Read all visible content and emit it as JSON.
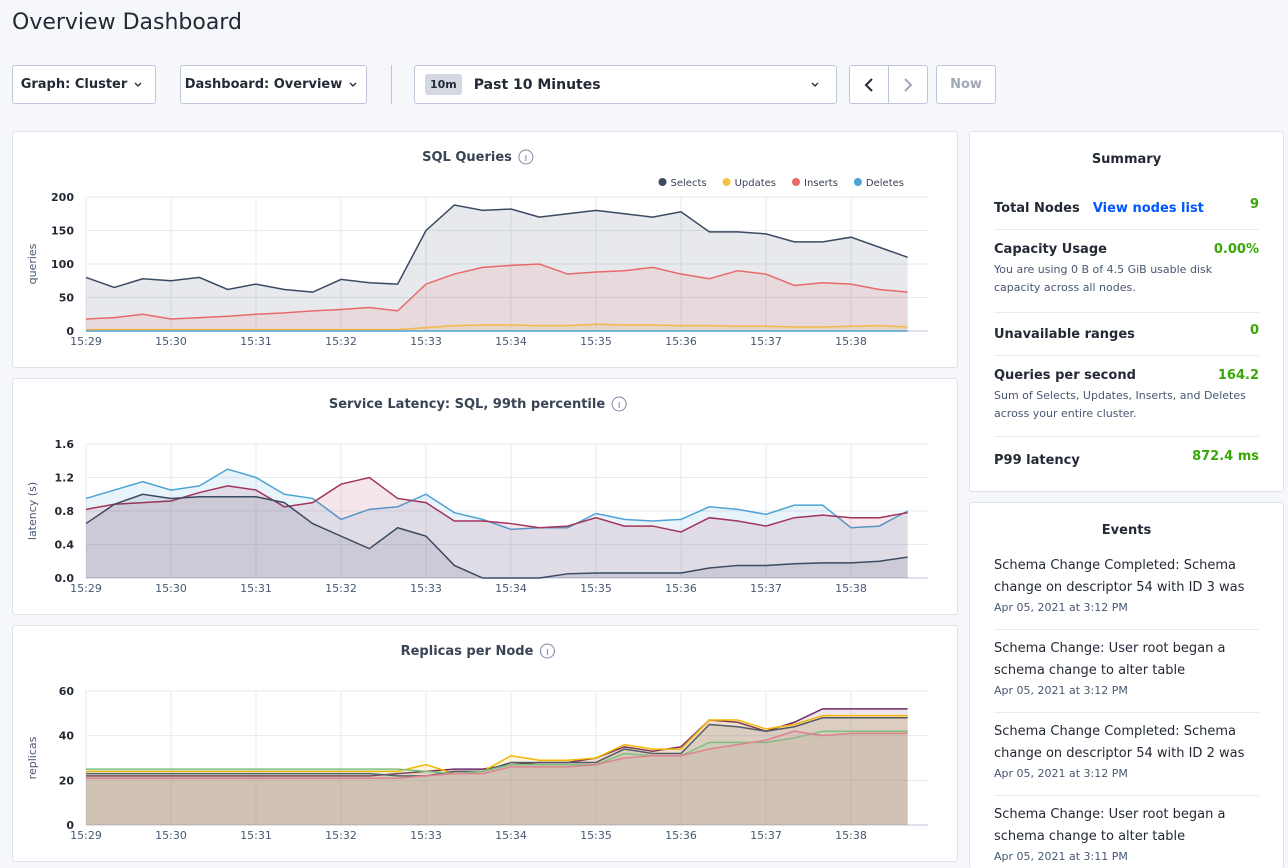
{
  "header": {
    "title": "Overview Dashboard"
  },
  "controls": {
    "graph": "Graph: Cluster",
    "dashboard": "Dashboard: Overview",
    "range_badge": "10m",
    "range": "Past 10 Minutes",
    "now": "Now"
  },
  "chart_data": [
    {
      "type": "line",
      "title": "SQL Queries",
      "y_label": "queries",
      "categories": [
        "15:29",
        null,
        null,
        "15:30",
        null,
        null,
        "15:31",
        null,
        null,
        "15:32",
        null,
        null,
        "15:33",
        null,
        null,
        "15:34",
        null,
        null,
        "15:35",
        null,
        null,
        "15:36",
        null,
        null,
        "15:37",
        null,
        null,
        "15:38",
        null,
        null
      ],
      "ylim": [
        0,
        200
      ],
      "yticks": [
        0,
        50,
        100,
        150,
        200
      ],
      "grid": true,
      "legend": "top-right",
      "series": [
        {
          "name": "Selects",
          "color": "#3b4a63",
          "values": [
            80,
            65,
            78,
            75,
            80,
            62,
            70,
            62,
            58,
            77,
            72,
            70,
            150,
            188,
            180,
            182,
            170,
            175,
            180,
            175,
            170,
            178,
            148,
            148,
            145,
            133,
            133,
            140,
            125,
            110
          ]
        },
        {
          "name": "Updates",
          "color": "#f5c242",
          "values": [
            2,
            2,
            2,
            2,
            2,
            2,
            2,
            2,
            2,
            2,
            2,
            2,
            5,
            8,
            9,
            9,
            8,
            8,
            10,
            9,
            9,
            8,
            8,
            7,
            7,
            6,
            6,
            7,
            8,
            6
          ]
        },
        {
          "name": "Inserts",
          "color": "#e8696a",
          "values": [
            18,
            20,
            25,
            18,
            20,
            22,
            25,
            27,
            30,
            32,
            35,
            30,
            70,
            85,
            95,
            98,
            100,
            85,
            88,
            90,
            95,
            85,
            78,
            90,
            85,
            68,
            72,
            70,
            62,
            58
          ]
        },
        {
          "name": "Deletes",
          "color": "#4ea3d4",
          "values": [
            0,
            0,
            0,
            0,
            0,
            0,
            0,
            0,
            0,
            0,
            0,
            0,
            0,
            0,
            0,
            0,
            0,
            0,
            0,
            0,
            0,
            0,
            0,
            0,
            0,
            0,
            0,
            0,
            0,
            0
          ]
        }
      ]
    },
    {
      "type": "line",
      "title": "Service Latency: SQL, 99th percentile",
      "y_label": "latency (s)",
      "categories": [
        "15:29",
        null,
        null,
        "15:30",
        null,
        null,
        "15:31",
        null,
        null,
        "15:32",
        null,
        null,
        "15:33",
        null,
        null,
        "15:34",
        null,
        null,
        "15:35",
        null,
        null,
        "15:36",
        null,
        null,
        "15:37",
        null,
        null,
        "15:38",
        null,
        null
      ],
      "ylim": [
        0,
        1.6
      ],
      "yticks": [
        {
          "value": 0,
          "label": "0.0"
        },
        0.4,
        0.8,
        1.2,
        1.6
      ],
      "grid": true,
      "series": [
        {
          "color": "#4ea3d4",
          "values": [
            0.95,
            1.05,
            1.15,
            1.05,
            1.1,
            1.3,
            1.2,
            1.0,
            0.95,
            0.7,
            0.82,
            0.85,
            1.0,
            0.78,
            0.7,
            0.58,
            0.6,
            0.6,
            0.77,
            0.7,
            0.68,
            0.7,
            0.85,
            0.82,
            0.76,
            0.87,
            0.87,
            0.6,
            0.62,
            0.8
          ]
        },
        {
          "color": "#a3345a",
          "values": [
            0.82,
            0.88,
            0.9,
            0.92,
            1.02,
            1.1,
            1.05,
            0.85,
            0.9,
            1.12,
            1.2,
            0.95,
            0.9,
            0.68,
            0.68,
            0.65,
            0.6,
            0.62,
            0.72,
            0.62,
            0.62,
            0.55,
            0.72,
            0.68,
            0.62,
            0.72,
            0.75,
            0.72,
            0.72,
            0.78
          ]
        },
        {
          "color": "#3b4a63",
          "values": [
            0.65,
            0.88,
            1.0,
            0.95,
            0.97,
            0.97,
            0.97,
            0.9,
            0.65,
            0.5,
            0.35,
            0.6,
            0.5,
            0.15,
            0.0,
            0.0,
            0.0,
            0.05,
            0.06,
            0.06,
            0.06,
            0.06,
            0.12,
            0.15,
            0.15,
            0.17,
            0.18,
            0.18,
            0.2,
            0.25
          ]
        }
      ]
    },
    {
      "type": "line",
      "title": "Replicas per Node",
      "y_label": "replicas",
      "categories": [
        "15:29",
        null,
        null,
        "15:30",
        null,
        null,
        "15:31",
        null,
        null,
        "15:32",
        null,
        null,
        "15:33",
        null,
        null,
        "15:34",
        null,
        null,
        "15:35",
        null,
        null,
        "15:36",
        null,
        null,
        "15:37",
        null,
        null,
        "15:38",
        null,
        null
      ],
      "ylim": [
        0,
        60
      ],
      "yticks": [
        0,
        20,
        40,
        60
      ],
      "grid": true,
      "series": [
        {
          "color": "#6e2a63",
          "values": [
            22,
            22,
            22,
            22,
            22,
            22,
            22,
            22,
            22,
            22,
            22,
            23,
            24,
            25,
            25,
            27,
            28,
            28,
            30,
            35,
            33,
            35,
            47,
            46,
            42,
            46,
            52,
            52,
            52,
            52
          ]
        },
        {
          "color": "#f5b800",
          "values": [
            24,
            24,
            24,
            24,
            24,
            24,
            24,
            24,
            24,
            24,
            24,
            24,
            27,
            23,
            24,
            31,
            29,
            29,
            30,
            36,
            34,
            34,
            47,
            47,
            43,
            45,
            49,
            49,
            49,
            49
          ]
        },
        {
          "color": "#555a66",
          "values": [
            23,
            23,
            23,
            23,
            23,
            23,
            23,
            23,
            23,
            23,
            23,
            22,
            22,
            24,
            24,
            28,
            28,
            28,
            28,
            34,
            32,
            32,
            45,
            44,
            42,
            44,
            48,
            48,
            48,
            48
          ]
        },
        {
          "color": "#7fbf7f",
          "values": [
            25,
            25,
            25,
            25,
            25,
            25,
            25,
            25,
            25,
            25,
            25,
            25,
            24,
            23,
            24,
            27,
            27,
            27,
            27,
            32,
            31,
            31,
            37,
            37,
            37,
            39,
            42,
            42,
            42,
            42
          ]
        },
        {
          "color": "#e08090",
          "values": [
            21,
            21,
            21,
            21,
            21,
            21,
            21,
            21,
            21,
            21,
            21,
            21,
            22,
            23,
            23,
            26,
            26,
            26,
            27,
            30,
            31,
            31,
            34,
            36,
            38,
            42,
            40,
            41,
            41,
            41
          ]
        }
      ]
    }
  ],
  "summary": {
    "title": "Summary",
    "rows": [
      {
        "label": "Total Nodes",
        "link": "View nodes list",
        "value": "9"
      },
      {
        "label": "Capacity Usage",
        "value": "0.00%",
        "description": "You are using 0 B of 4.5 GiB usable disk capacity across all nodes."
      },
      {
        "label": "Unavailable ranges",
        "value": "0"
      },
      {
        "label": "Queries per second",
        "value": "164.2",
        "description": "Sum of Selects, Updates, Inserts, and Deletes across your entire cluster."
      },
      {
        "label": "P99 latency",
        "value": "872.4 ms"
      }
    ]
  },
  "events": {
    "title": "Events",
    "items": [
      {
        "text": "Schema Change Completed: Schema change on descriptor 54 with ID 3 was",
        "date": "Apr 05, 2021 at 3:12 PM"
      },
      {
        "text": "Schema Change: User root began a schema change to alter table",
        "date": "Apr 05, 2021 at 3:12 PM"
      },
      {
        "text": "Schema Change Completed: Schema change on descriptor 54 with ID 2 was",
        "date": "Apr 05, 2021 at 3:12 PM"
      },
      {
        "text": "Schema Change: User root began a schema change to alter table",
        "date": "Apr 05, 2021 at 3:11 PM"
      }
    ]
  }
}
